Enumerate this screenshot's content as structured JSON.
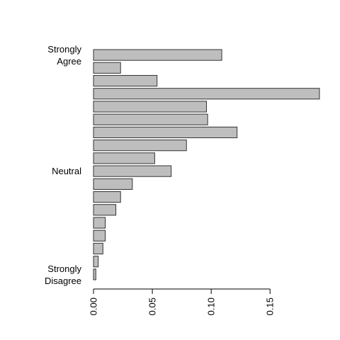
{
  "chart_data": {
    "type": "barh",
    "categories": [
      "Strongly\nAgree",
      null,
      null,
      null,
      null,
      null,
      null,
      null,
      null,
      "Neutral",
      null,
      null,
      null,
      null,
      null,
      null,
      null,
      "Strongly\nDisagree"
    ],
    "values": [
      0.109,
      0.023,
      0.054,
      0.192,
      0.096,
      0.097,
      0.122,
      0.079,
      0.052,
      0.066,
      0.033,
      0.023,
      0.019,
      0.01,
      0.01,
      0.008,
      0.004,
      0.002
    ],
    "color": "#bebebe",
    "xlim": [
      0,
      0.192
    ],
    "xticks": [
      {
        "value": 0,
        "label": "0.00"
      },
      {
        "value": 0.05,
        "label": "0.05"
      },
      {
        "value": 0.1,
        "label": "0.10"
      },
      {
        "value": 0.15,
        "label": "0.15"
      }
    ]
  }
}
